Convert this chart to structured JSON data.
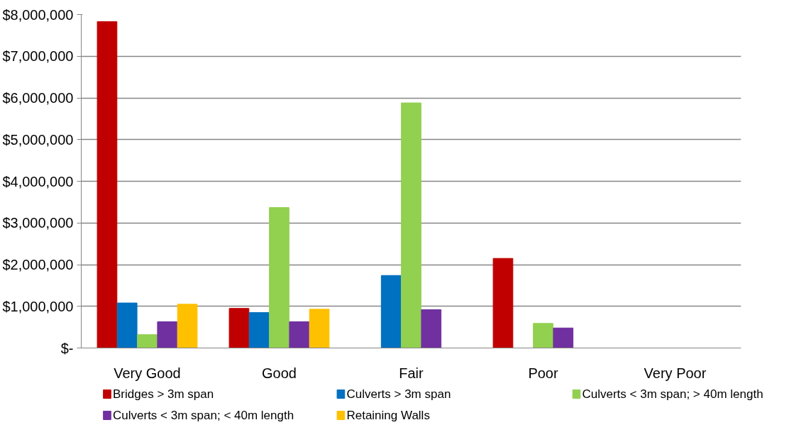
{
  "chart_data": {
    "type": "bar",
    "categories": [
      "Very Good",
      "Good",
      "Fair",
      "Poor",
      "Very Poor"
    ],
    "series": [
      {
        "name": "Bridges > 3m span",
        "color": "#c00000",
        "values": [
          7830000,
          950000,
          0,
          2150000,
          0
        ]
      },
      {
        "name": "Culverts > 3m span",
        "color": "#0070c0",
        "values": [
          1080000,
          850000,
          1740000,
          0,
          0
        ]
      },
      {
        "name": "Culverts < 3m span; > 40m length",
        "color": "#92d050",
        "values": [
          320000,
          3370000,
          5880000,
          590000,
          0
        ]
      },
      {
        "name": "Culverts < 3m span; < 40m length",
        "color": "#7030a0",
        "values": [
          630000,
          630000,
          920000,
          480000,
          0
        ]
      },
      {
        "name": "Retaining Walls",
        "color": "#ffc000",
        "values": [
          1050000,
          930000,
          0,
          0,
          0
        ]
      }
    ],
    "ylim": [
      0,
      8000000
    ],
    "yticks": [
      {
        "value": 0,
        "label": "$-"
      },
      {
        "value": 1000000,
        "label": "$1,000,000"
      },
      {
        "value": 2000000,
        "label": "$2,000,000"
      },
      {
        "value": 3000000,
        "label": "$3,000,000"
      },
      {
        "value": 4000000,
        "label": "$4,000,000"
      },
      {
        "value": 5000000,
        "label": "$5,000,000"
      },
      {
        "value": 6000000,
        "label": "$6,000,000"
      },
      {
        "value": 7000000,
        "label": "$7,000,000"
      },
      {
        "value": 8000000,
        "label": "$8,000,000"
      }
    ],
    "grid": "y",
    "legend": "bottom"
  }
}
